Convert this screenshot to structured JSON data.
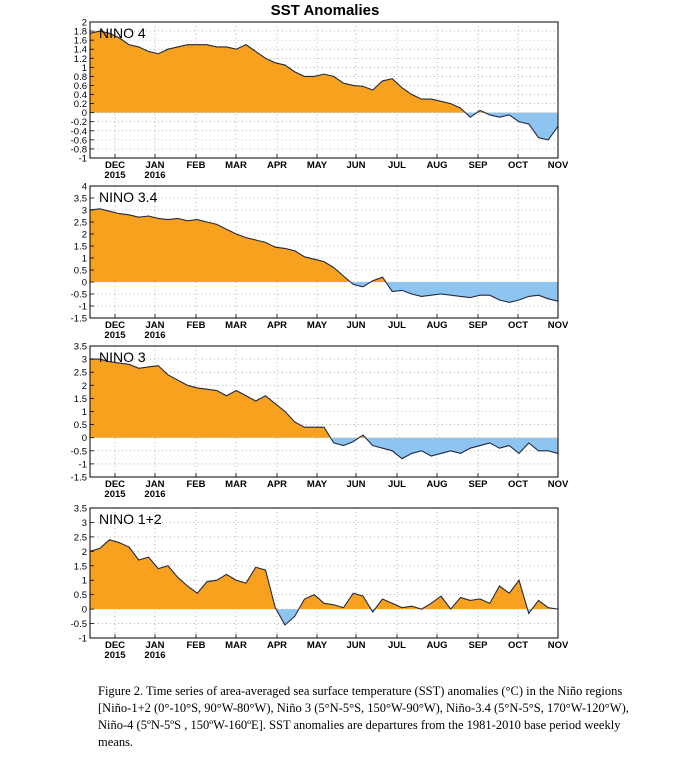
{
  "title": "SST Anomalies",
  "caption": "Figure 2. Time series of area-averaged sea surface temperature (SST) anomalies (°C) in the Niño regions [Niño-1+2 (0°-10°S, 90°W-80°W), Niño 3 (5°N-5°S, 150°W-90°W), Niño-3.4 (5°N-5°S, 170°W-120°W), Niño-4 (5ºN-5ºS , 150ºW-160ºE]. SST anomalies are departures from the 1981-2010 base period weekly means.",
  "colors": {
    "positive": "#f7a11e",
    "negative": "#8ec5f0",
    "line": "#1f2a44"
  },
  "chart_data": [
    {
      "type": "area",
      "label": "NINO 4",
      "x_range": [
        0,
        48
      ],
      "ylim": [
        -1,
        2
      ],
      "yticks": [
        "-1",
        "-0.8",
        "-0.6",
        "-0.4",
        "-0.2",
        "0",
        "0.2",
        "0.4",
        "0.6",
        "0.8",
        "1",
        "1.2",
        "1.4",
        "1.6",
        "1.8",
        "2"
      ],
      "ytick_values": [
        -1,
        -0.8,
        -0.6,
        -0.4,
        -0.2,
        0,
        0.2,
        0.4,
        0.6,
        0.8,
        1,
        1.2,
        1.4,
        1.6,
        1.8,
        2
      ],
      "month_labels": [
        "DEC",
        "JAN",
        "FEB",
        "MAR",
        "APR",
        "MAY",
        "JUN",
        "JUL",
        "AUG",
        "SEP",
        "OCT",
        "NOV"
      ],
      "year_labels": [
        "2015",
        "2016"
      ],
      "values": [
        1.75,
        1.8,
        1.75,
        1.65,
        1.5,
        1.45,
        1.35,
        1.3,
        1.4,
        1.45,
        1.5,
        1.5,
        1.5,
        1.45,
        1.45,
        1.4,
        1.5,
        1.35,
        1.2,
        1.1,
        1.05,
        0.9,
        0.8,
        0.8,
        0.85,
        0.8,
        0.65,
        0.6,
        0.58,
        0.5,
        0.7,
        0.75,
        0.55,
        0.4,
        0.3,
        0.3,
        0.25,
        0.2,
        0.1,
        -0.1,
        0.05,
        -0.05,
        -0.1,
        -0.05,
        -0.2,
        -0.25,
        -0.55,
        -0.6,
        -0.3
      ]
    },
    {
      "type": "area",
      "label": "NINO 3.4",
      "x_range": [
        0,
        48
      ],
      "ylim": [
        -1.5,
        4
      ],
      "yticks": [
        "-1.5",
        "-1",
        "-0.5",
        "0",
        "0.5",
        "1",
        "1.5",
        "2",
        "2.5",
        "3",
        "3.5",
        "4"
      ],
      "ytick_values": [
        -1.5,
        -1,
        -0.5,
        0,
        0.5,
        1,
        1.5,
        2,
        2.5,
        3,
        3.5,
        4
      ],
      "month_labels": [
        "DEC",
        "JAN",
        "FEB",
        "MAR",
        "APR",
        "MAY",
        "JUN",
        "JUL",
        "AUG",
        "SEP",
        "OCT",
        "NOV"
      ],
      "year_labels": [
        "2015",
        "2016"
      ],
      "values": [
        3.0,
        3.05,
        2.95,
        2.85,
        2.8,
        2.7,
        2.75,
        2.65,
        2.6,
        2.65,
        2.55,
        2.6,
        2.5,
        2.4,
        2.2,
        2.0,
        1.85,
        1.75,
        1.65,
        1.45,
        1.4,
        1.3,
        1.05,
        0.95,
        0.85,
        0.6,
        0.25,
        -0.1,
        -0.2,
        0.05,
        0.2,
        -0.4,
        -0.35,
        -0.5,
        -0.6,
        -0.55,
        -0.5,
        -0.55,
        -0.6,
        -0.65,
        -0.55,
        -0.55,
        -0.75,
        -0.85,
        -0.75,
        -0.6,
        -0.55,
        -0.7,
        -0.8
      ]
    },
    {
      "type": "area",
      "label": "NINO 3",
      "x_range": [
        0,
        48
      ],
      "ylim": [
        -1.5,
        3.5
      ],
      "yticks": [
        "-1.5",
        "-1",
        "-0.5",
        "0",
        "0.5",
        "1",
        "1.5",
        "2",
        "2.5",
        "3",
        "3.5"
      ],
      "ytick_values": [
        -1.5,
        -1,
        -0.5,
        0,
        0.5,
        1,
        1.5,
        2,
        2.5,
        3,
        3.5
      ],
      "month_labels": [
        "DEC",
        "JAN",
        "FEB",
        "MAR",
        "APR",
        "MAY",
        "JUN",
        "JUL",
        "AUG",
        "SEP",
        "OCT",
        "NOV"
      ],
      "year_labels": [
        "2015",
        "2016"
      ],
      "values": [
        3.0,
        3.0,
        2.9,
        2.85,
        2.8,
        2.65,
        2.7,
        2.75,
        2.4,
        2.2,
        2.0,
        1.9,
        1.85,
        1.8,
        1.6,
        1.8,
        1.6,
        1.4,
        1.6,
        1.3,
        1.0,
        0.6,
        0.4,
        0.4,
        0.4,
        -0.2,
        -0.3,
        -0.15,
        0.1,
        -0.3,
        -0.4,
        -0.5,
        -0.8,
        -0.6,
        -0.5,
        -0.7,
        -0.6,
        -0.5,
        -0.6,
        -0.4,
        -0.3,
        -0.2,
        -0.4,
        -0.3,
        -0.6,
        -0.2,
        -0.5,
        -0.5,
        -0.6
      ]
    },
    {
      "type": "area",
      "label": "NINO 1+2",
      "x_range": [
        0,
        48
      ],
      "ylim": [
        -1,
        3.5
      ],
      "yticks": [
        "-1",
        "-0.5",
        "0",
        "0.5",
        "1",
        "1.5",
        "2",
        "2.5",
        "3",
        "3.5"
      ],
      "ytick_values": [
        -1,
        -0.5,
        0,
        0.5,
        1,
        1.5,
        2,
        2.5,
        3,
        3.5
      ],
      "month_labels": [
        "DEC",
        "JAN",
        "FEB",
        "MAR",
        "APR",
        "MAY",
        "JUN",
        "JUL",
        "AUG",
        "SEP",
        "OCT",
        "NOV"
      ],
      "year_labels": [
        "2015",
        "2016"
      ],
      "values": [
        2.0,
        2.1,
        2.4,
        2.3,
        2.15,
        1.7,
        1.8,
        1.4,
        1.5,
        1.1,
        0.8,
        0.55,
        0.95,
        1.0,
        1.2,
        1.0,
        0.9,
        1.45,
        1.35,
        0.05,
        -0.55,
        -0.25,
        0.35,
        0.5,
        0.2,
        0.15,
        0.05,
        0.55,
        0.45,
        -0.1,
        0.35,
        0.2,
        0.05,
        0.1,
        0.0,
        0.2,
        0.45,
        0.0,
        0.4,
        0.3,
        0.35,
        0.2,
        0.8,
        0.55,
        1.0,
        -0.15,
        0.3,
        0.05,
        0.0
      ]
    }
  ]
}
